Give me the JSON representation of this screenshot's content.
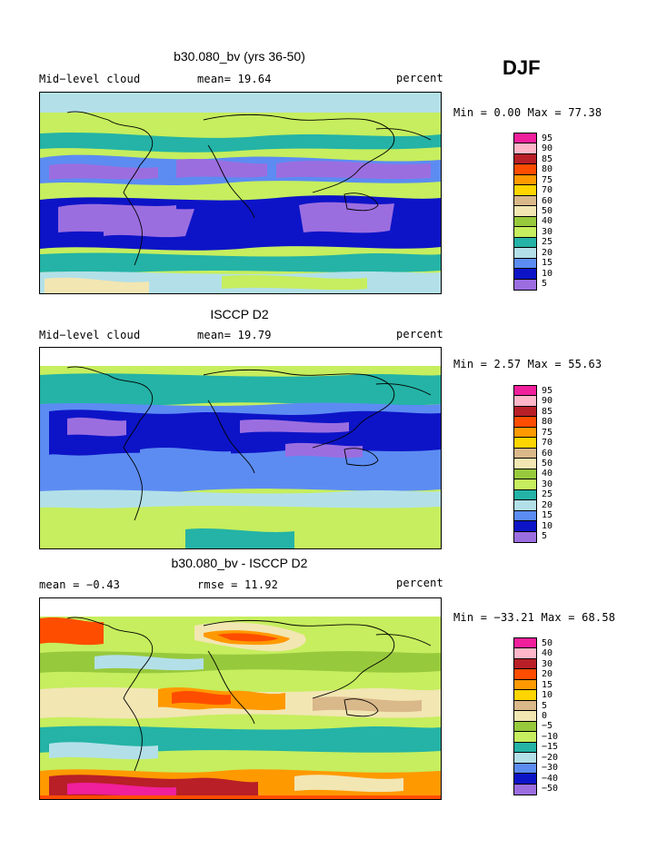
{
  "season": "DJF",
  "panels": [
    {
      "title": "b30.080_bv (yrs 36-50)",
      "left_label": "Mid−level cloud",
      "center_label": "mean=  19.64",
      "right_label": "percent",
      "minmax": "Min =   0.00 Max =  77.38",
      "legend_labels": [
        "95",
        "90",
        "85",
        "80",
        "75",
        "70",
        "60",
        "50",
        "40",
        "30",
        "25",
        "20",
        "15",
        "10",
        "5"
      ],
      "palette": "abs"
    },
    {
      "title": "ISCCP D2",
      "left_label": "Mid−level cloud",
      "center_label": "mean=  19.79",
      "right_label": "percent",
      "minmax": "Min =   2.57 Max =  55.63",
      "legend_labels": [
        "95",
        "90",
        "85",
        "80",
        "75",
        "70",
        "60",
        "50",
        "40",
        "30",
        "25",
        "20",
        "15",
        "10",
        "5"
      ],
      "palette": "abs"
    },
    {
      "title": "b30.080_bv - ISCCP D2",
      "left_label": "mean =  −0.43",
      "center_label": "rmse =  11.92",
      "right_label": "percent",
      "minmax": "Min = −33.21 Max =  68.58",
      "legend_labels": [
        "50",
        "40",
        "30",
        "20",
        "15",
        "10",
        "5",
        "0",
        "−5",
        "−10",
        "−15",
        "−20",
        "−30",
        "−40",
        "−50"
      ],
      "palette": "diff"
    }
  ],
  "colors": {
    "abs": [
      "#f01f9b",
      "#ffb6c8",
      "#b81f27",
      "#ff4d00",
      "#ff9900",
      "#ffd500",
      "#d9b88a",
      "#f2e6b3",
      "#97c93d",
      "#c6ee5e",
      "#24b3a6",
      "#b3e0e8",
      "#5c8cf2",
      "#0d14c7",
      "#9b6ee0"
    ],
    "diff": [
      "#f01f9b",
      "#ffb6c8",
      "#b81f27",
      "#ff4d00",
      "#ff9900",
      "#ffd500",
      "#d9b88a",
      "#f2e6b3",
      "#97c93d",
      "#c6ee5e",
      "#24b3a6",
      "#b3e0e8",
      "#5c8cf2",
      "#0d14c7",
      "#9b6ee0"
    ]
  }
}
